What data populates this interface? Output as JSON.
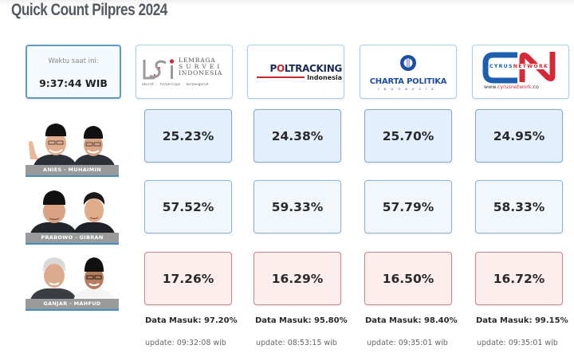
{
  "page": {
    "title": "Quick Count Pilpres 2024"
  },
  "clock": {
    "label": "Waktu saat ini:",
    "value": "9:37:44 WIB"
  },
  "pollsters": [
    {
      "name": "Lembaga Survei Indonesia",
      "logo_lines": [
        "LEMBAGA",
        "S U R V E I",
        "INDONESIA"
      ],
      "tagline": "akurat . terpercaya . berpengaruh",
      "data_masuk": "Data Masuk: 97.20%",
      "update": "update: 09:32:08 wib"
    },
    {
      "name": "Poltracking Indonesia",
      "logo_main": "POLTRACKING",
      "logo_sub": "Indonesia",
      "data_masuk": "Data Masuk: 95.80%",
      "update": "update: 08:53:15 wib"
    },
    {
      "name": "Charta Politika Indonesia",
      "logo_main": "CHARTA POLITIKA",
      "logo_sub": "INDONESIA",
      "data_masuk": "Data Masuk: 98.40%",
      "update": "update: 09:35:01 wib"
    },
    {
      "name": "Cyrus Network",
      "logo_word_blue": "CYRUS",
      "logo_word_red": "NETWORK",
      "logo_url_a": "www.",
      "logo_url_b": "cyrus",
      "logo_url_c": "network",
      "logo_url_d": ".co",
      "data_masuk": "Data Masuk: 99.15%",
      "update": "update: 09:35:01 wib"
    }
  ],
  "candidates": [
    {
      "label": "ANIES - MUHAIMIN",
      "results": [
        "25.23%",
        "24.38%",
        "25.70%",
        "24.95%"
      ]
    },
    {
      "label": "PRABOWO - GIBRAN",
      "results": [
        "57.52%",
        "59.33%",
        "57.79%",
        "58.33%"
      ]
    },
    {
      "label": "GANJAR - MAHFUD",
      "results": [
        "17.26%",
        "16.29%",
        "16.50%",
        "16.72%"
      ]
    }
  ],
  "colors": {
    "row1_bg": "#e3effc",
    "row2_bg": "#f2f7fc",
    "row3_bg": "#fdeeee",
    "accent_blue": "#3d8fc6",
    "accent_red": "#c8242b"
  }
}
